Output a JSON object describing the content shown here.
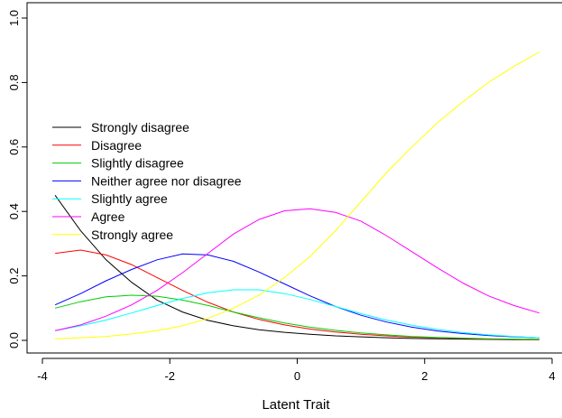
{
  "chart_data": {
    "type": "line",
    "title": "",
    "xlabel": "Latent Trait",
    "ylabel": "",
    "xlim": [
      -4,
      4
    ],
    "ylim": [
      0,
      1
    ],
    "x_ticks": [
      "-4",
      "-2",
      "0",
      "2",
      "4"
    ],
    "y_ticks": [
      "0.0",
      "0.2",
      "0.4",
      "0.6",
      "0.8",
      "1.0"
    ],
    "grid": false,
    "legend_position": "left",
    "x": [
      -3.8,
      -3.4,
      -3.0,
      -2.6,
      -2.2,
      -1.8,
      -1.4,
      -1.0,
      -0.6,
      -0.2,
      0.2,
      0.6,
      1.0,
      1.4,
      1.8,
      2.2,
      2.6,
      3.0,
      3.4,
      3.8
    ],
    "series": [
      {
        "name": "Strongly disagree",
        "color": "#000000",
        "values": [
          0.45,
          0.34,
          0.25,
          0.18,
          0.125,
          0.088,
          0.062,
          0.045,
          0.033,
          0.025,
          0.019,
          0.014,
          0.011,
          0.008,
          0.006,
          0.005,
          0.004,
          0.003,
          0.002,
          0.002
        ]
      },
      {
        "name": "Disagree",
        "color": "#ff0000",
        "values": [
          0.27,
          0.28,
          0.265,
          0.235,
          0.195,
          0.155,
          0.118,
          0.088,
          0.065,
          0.048,
          0.035,
          0.026,
          0.019,
          0.014,
          0.01,
          0.008,
          0.006,
          0.004,
          0.003,
          0.002
        ]
      },
      {
        "name": "Slightly disagree",
        "color": "#00cc00",
        "values": [
          0.1,
          0.12,
          0.135,
          0.14,
          0.137,
          0.125,
          0.108,
          0.088,
          0.07,
          0.054,
          0.041,
          0.031,
          0.023,
          0.017,
          0.012,
          0.009,
          0.007,
          0.005,
          0.004,
          0.003
        ]
      },
      {
        "name": "Neither agree nor disagree",
        "color": "#0000ff",
        "values": [
          0.11,
          0.145,
          0.185,
          0.22,
          0.25,
          0.268,
          0.265,
          0.245,
          0.212,
          0.175,
          0.138,
          0.105,
          0.078,
          0.057,
          0.041,
          0.029,
          0.021,
          0.015,
          0.011,
          0.008
        ]
      },
      {
        "name": "Slightly agree",
        "color": "#00ffff",
        "values": [
          0.03,
          0.045,
          0.063,
          0.085,
          0.108,
          0.13,
          0.148,
          0.157,
          0.157,
          0.145,
          0.127,
          0.105,
          0.083,
          0.063,
          0.047,
          0.034,
          0.024,
          0.017,
          0.012,
          0.008
        ]
      },
      {
        "name": "Agree",
        "color": "#ff00ff",
        "values": [
          0.03,
          0.048,
          0.075,
          0.11,
          0.155,
          0.21,
          0.27,
          0.33,
          0.375,
          0.402,
          0.408,
          0.397,
          0.37,
          0.325,
          0.275,
          0.225,
          0.178,
          0.138,
          0.108,
          0.085
        ]
      },
      {
        "name": "Strongly agree",
        "color": "#ffff00",
        "values": [
          0.005,
          0.008,
          0.012,
          0.02,
          0.03,
          0.045,
          0.068,
          0.1,
          0.14,
          0.195,
          0.26,
          0.34,
          0.43,
          0.52,
          0.6,
          0.675,
          0.74,
          0.8,
          0.85,
          0.895
        ]
      }
    ]
  }
}
